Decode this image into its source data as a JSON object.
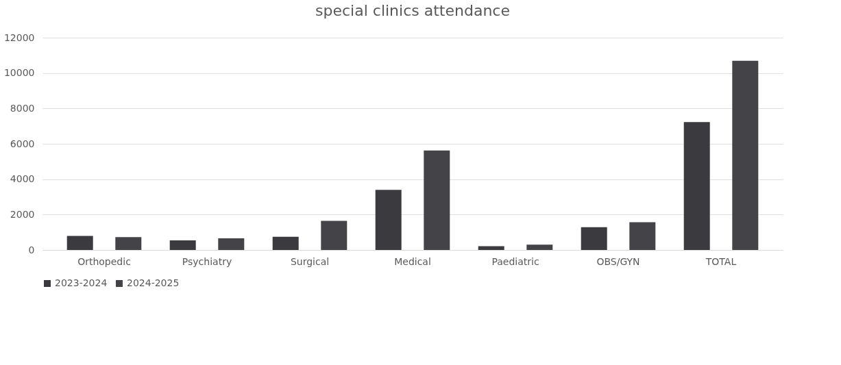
{
  "chart_data": {
    "type": "bar",
    "title": "special clinics attendance",
    "categories": [
      "Orthopedic",
      "Psychiatry",
      "Surgical",
      "Medical",
      "Paediatric",
      "OBS/GYN",
      "TOTAL"
    ],
    "series": [
      {
        "name": "2023-2024",
        "color": "#3b3b3f",
        "values": [
          790,
          540,
          750,
          3400,
          210,
          1290,
          7230
        ]
      },
      {
        "name": "2024-2025",
        "color": "#444448",
        "values": [
          730,
          660,
          1650,
          5620,
          300,
          1570,
          10690
        ]
      }
    ],
    "ylim": [
      0,
      12000
    ],
    "yticks": [
      0,
      2000,
      4000,
      6000,
      8000,
      10000,
      12000
    ],
    "grid": "y",
    "legend": "bottom"
  }
}
